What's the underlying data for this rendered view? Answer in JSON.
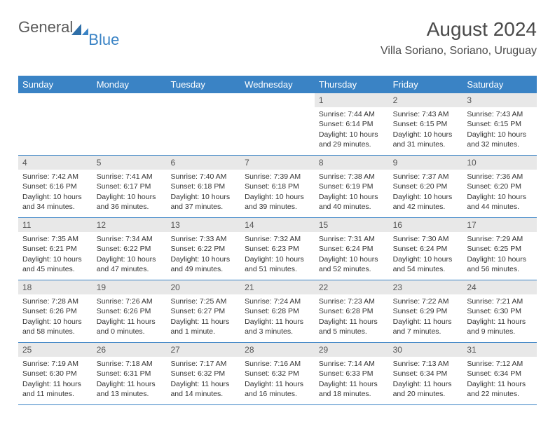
{
  "logo": {
    "part1": "General",
    "part2": "Blue",
    "color1": "#5a5a5a",
    "color2": "#3a83c5"
  },
  "header": {
    "title": "August 2024",
    "location": "Villa Soriano, Soriano, Uruguay"
  },
  "colors": {
    "header_bar": "#3a83c5",
    "header_text": "#ffffff",
    "daynum_bg": "#e8e8e8",
    "daynum_text": "#555555",
    "body_text": "#333333",
    "divider": "#3a83c5",
    "background": "#ffffff"
  },
  "typography": {
    "title_fontsize": 28,
    "location_fontsize": 16,
    "dow_fontsize": 13,
    "daynum_fontsize": 12,
    "body_fontsize": 10.5
  },
  "daysOfWeek": [
    "Sunday",
    "Monday",
    "Tuesday",
    "Wednesday",
    "Thursday",
    "Friday",
    "Saturday"
  ],
  "weeks": [
    [
      null,
      null,
      null,
      null,
      {
        "n": "1",
        "sr": "7:44 AM",
        "ss": "6:14 PM",
        "dl": "10 hours and 29 minutes."
      },
      {
        "n": "2",
        "sr": "7:43 AM",
        "ss": "6:15 PM",
        "dl": "10 hours and 31 minutes."
      },
      {
        "n": "3",
        "sr": "7:43 AM",
        "ss": "6:15 PM",
        "dl": "10 hours and 32 minutes."
      }
    ],
    [
      {
        "n": "4",
        "sr": "7:42 AM",
        "ss": "6:16 PM",
        "dl": "10 hours and 34 minutes."
      },
      {
        "n": "5",
        "sr": "7:41 AM",
        "ss": "6:17 PM",
        "dl": "10 hours and 36 minutes."
      },
      {
        "n": "6",
        "sr": "7:40 AM",
        "ss": "6:18 PM",
        "dl": "10 hours and 37 minutes."
      },
      {
        "n": "7",
        "sr": "7:39 AM",
        "ss": "6:18 PM",
        "dl": "10 hours and 39 minutes."
      },
      {
        "n": "8",
        "sr": "7:38 AM",
        "ss": "6:19 PM",
        "dl": "10 hours and 40 minutes."
      },
      {
        "n": "9",
        "sr": "7:37 AM",
        "ss": "6:20 PM",
        "dl": "10 hours and 42 minutes."
      },
      {
        "n": "10",
        "sr": "7:36 AM",
        "ss": "6:20 PM",
        "dl": "10 hours and 44 minutes."
      }
    ],
    [
      {
        "n": "11",
        "sr": "7:35 AM",
        "ss": "6:21 PM",
        "dl": "10 hours and 45 minutes."
      },
      {
        "n": "12",
        "sr": "7:34 AM",
        "ss": "6:22 PM",
        "dl": "10 hours and 47 minutes."
      },
      {
        "n": "13",
        "sr": "7:33 AM",
        "ss": "6:22 PM",
        "dl": "10 hours and 49 minutes."
      },
      {
        "n": "14",
        "sr": "7:32 AM",
        "ss": "6:23 PM",
        "dl": "10 hours and 51 minutes."
      },
      {
        "n": "15",
        "sr": "7:31 AM",
        "ss": "6:24 PM",
        "dl": "10 hours and 52 minutes."
      },
      {
        "n": "16",
        "sr": "7:30 AM",
        "ss": "6:24 PM",
        "dl": "10 hours and 54 minutes."
      },
      {
        "n": "17",
        "sr": "7:29 AM",
        "ss": "6:25 PM",
        "dl": "10 hours and 56 minutes."
      }
    ],
    [
      {
        "n": "18",
        "sr": "7:28 AM",
        "ss": "6:26 PM",
        "dl": "10 hours and 58 minutes."
      },
      {
        "n": "19",
        "sr": "7:26 AM",
        "ss": "6:26 PM",
        "dl": "11 hours and 0 minutes."
      },
      {
        "n": "20",
        "sr": "7:25 AM",
        "ss": "6:27 PM",
        "dl": "11 hours and 1 minute."
      },
      {
        "n": "21",
        "sr": "7:24 AM",
        "ss": "6:28 PM",
        "dl": "11 hours and 3 minutes."
      },
      {
        "n": "22",
        "sr": "7:23 AM",
        "ss": "6:28 PM",
        "dl": "11 hours and 5 minutes."
      },
      {
        "n": "23",
        "sr": "7:22 AM",
        "ss": "6:29 PM",
        "dl": "11 hours and 7 minutes."
      },
      {
        "n": "24",
        "sr": "7:21 AM",
        "ss": "6:30 PM",
        "dl": "11 hours and 9 minutes."
      }
    ],
    [
      {
        "n": "25",
        "sr": "7:19 AM",
        "ss": "6:30 PM",
        "dl": "11 hours and 11 minutes."
      },
      {
        "n": "26",
        "sr": "7:18 AM",
        "ss": "6:31 PM",
        "dl": "11 hours and 13 minutes."
      },
      {
        "n": "27",
        "sr": "7:17 AM",
        "ss": "6:32 PM",
        "dl": "11 hours and 14 minutes."
      },
      {
        "n": "28",
        "sr": "7:16 AM",
        "ss": "6:32 PM",
        "dl": "11 hours and 16 minutes."
      },
      {
        "n": "29",
        "sr": "7:14 AM",
        "ss": "6:33 PM",
        "dl": "11 hours and 18 minutes."
      },
      {
        "n": "30",
        "sr": "7:13 AM",
        "ss": "6:34 PM",
        "dl": "11 hours and 20 minutes."
      },
      {
        "n": "31",
        "sr": "7:12 AM",
        "ss": "6:34 PM",
        "dl": "11 hours and 22 minutes."
      }
    ]
  ],
  "labels": {
    "sunrise": "Sunrise:",
    "sunset": "Sunset:",
    "daylight": "Daylight:"
  }
}
